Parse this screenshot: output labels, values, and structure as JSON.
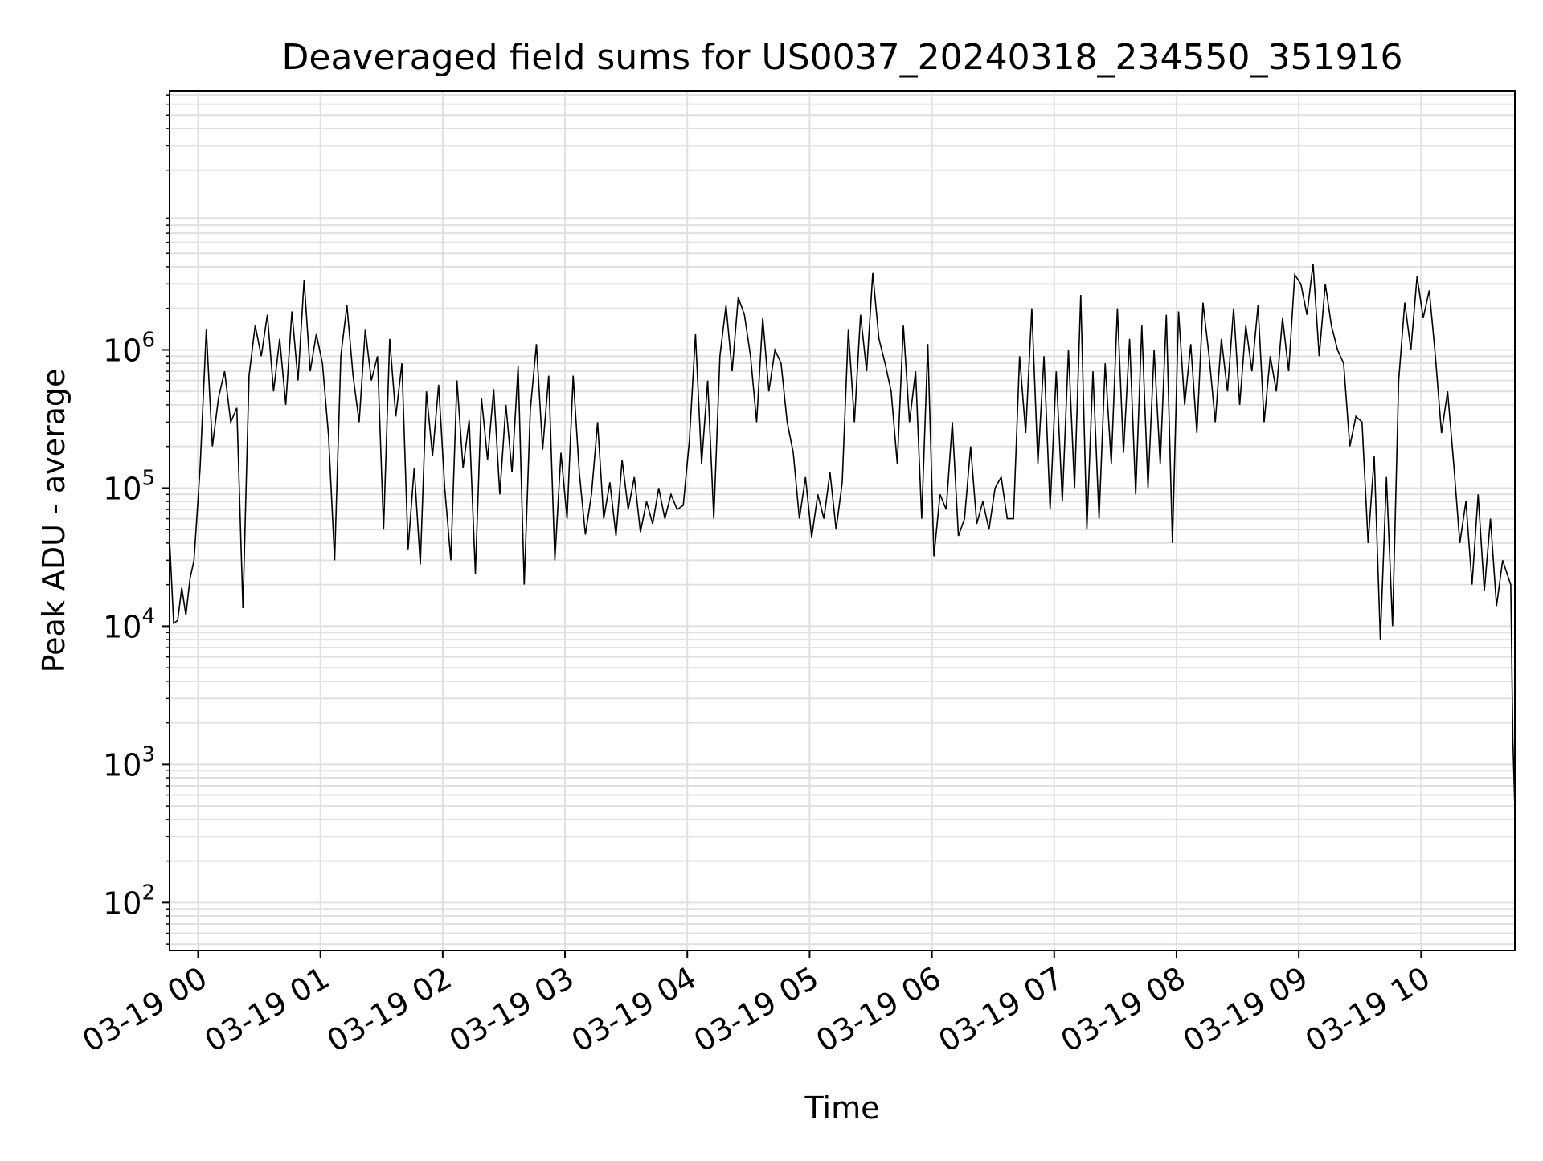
{
  "chart_data": {
    "type": "line",
    "title": "Deaveraged field sums for US0037_20240318_234550_351916",
    "xlabel": "Time",
    "ylabel": "Peak ADU - average",
    "yscale": "log",
    "ylim": [
      45,
      75000000
    ],
    "xlim": [
      "2024-03-18 23:46",
      "2024-03-19 10:46"
    ],
    "grid": true,
    "line_color": "#000000",
    "grid_color": "#e0e0e0",
    "x_ticks": [
      {
        "value": "2024-03-19 00:00",
        "label": "03-19 00"
      },
      {
        "value": "2024-03-19 01:00",
        "label": "03-19 01"
      },
      {
        "value": "2024-03-19 02:00",
        "label": "03-19 02"
      },
      {
        "value": "2024-03-19 03:00",
        "label": "03-19 03"
      },
      {
        "value": "2024-03-19 04:00",
        "label": "03-19 04"
      },
      {
        "value": "2024-03-19 05:00",
        "label": "03-19 05"
      },
      {
        "value": "2024-03-19 06:00",
        "label": "03-19 06"
      },
      {
        "value": "2024-03-19 07:00",
        "label": "03-19 07"
      },
      {
        "value": "2024-03-19 08:00",
        "label": "03-19 08"
      },
      {
        "value": "2024-03-19 09:00",
        "label": "03-19 09"
      },
      {
        "value": "2024-03-19 10:00",
        "label": "03-19 10"
      }
    ],
    "y_ticks": [
      {
        "value": 100,
        "base": "10",
        "exp": "2"
      },
      {
        "value": 1000,
        "base": "10",
        "exp": "3"
      },
      {
        "value": 10000,
        "base": "10",
        "exp": "4"
      },
      {
        "value": 100000,
        "base": "10",
        "exp": "5"
      },
      {
        "value": 1000000,
        "base": "10",
        "exp": "6"
      }
    ],
    "series": [
      {
        "x": [
          "2024-03-18 23:46",
          "2024-03-18 23:48",
          "2024-03-18 23:50",
          "2024-03-18 23:52",
          "2024-03-18 23:54",
          "2024-03-18 23:56",
          "2024-03-18 23:58",
          "2024-03-19 00:01",
          "2024-03-19 00:04",
          "2024-03-19 00:07",
          "2024-03-19 00:10",
          "2024-03-19 00:13",
          "2024-03-19 00:16",
          "2024-03-19 00:19",
          "2024-03-19 00:22",
          "2024-03-19 00:25",
          "2024-03-19 00:28",
          "2024-03-19 00:31",
          "2024-03-19 00:34",
          "2024-03-19 00:37",
          "2024-03-19 00:40",
          "2024-03-19 00:43",
          "2024-03-19 00:46",
          "2024-03-19 00:49",
          "2024-03-19 00:52",
          "2024-03-19 00:55",
          "2024-03-19 00:58",
          "2024-03-19 01:01",
          "2024-03-19 01:04",
          "2024-03-19 01:07",
          "2024-03-19 01:10",
          "2024-03-19 01:13",
          "2024-03-19 01:16",
          "2024-03-19 01:19",
          "2024-03-19 01:22",
          "2024-03-19 01:25",
          "2024-03-19 01:28",
          "2024-03-19 01:31",
          "2024-03-19 01:34",
          "2024-03-19 01:37",
          "2024-03-19 01:40",
          "2024-03-19 01:43",
          "2024-03-19 01:46",
          "2024-03-19 01:49",
          "2024-03-19 01:52",
          "2024-03-19 01:55",
          "2024-03-19 01:58",
          "2024-03-19 02:01",
          "2024-03-19 02:04",
          "2024-03-19 02:07",
          "2024-03-19 02:10",
          "2024-03-19 02:13",
          "2024-03-19 02:16",
          "2024-03-19 02:19",
          "2024-03-19 02:22",
          "2024-03-19 02:25",
          "2024-03-19 02:28",
          "2024-03-19 02:31",
          "2024-03-19 02:34",
          "2024-03-19 02:37",
          "2024-03-19 02:40",
          "2024-03-19 02:43",
          "2024-03-19 02:46",
          "2024-03-19 02:49",
          "2024-03-19 02:52",
          "2024-03-19 02:55",
          "2024-03-19 02:58",
          "2024-03-19 03:01",
          "2024-03-19 03:04",
          "2024-03-19 03:07",
          "2024-03-19 03:10",
          "2024-03-19 03:13",
          "2024-03-19 03:16",
          "2024-03-19 03:19",
          "2024-03-19 03:22",
          "2024-03-19 03:25",
          "2024-03-19 03:28",
          "2024-03-19 03:31",
          "2024-03-19 03:34",
          "2024-03-19 03:37",
          "2024-03-19 03:40",
          "2024-03-19 03:43",
          "2024-03-19 03:46",
          "2024-03-19 03:49",
          "2024-03-19 03:52",
          "2024-03-19 03:55",
          "2024-03-19 03:58",
          "2024-03-19 04:01",
          "2024-03-19 04:04",
          "2024-03-19 04:07",
          "2024-03-19 04:10",
          "2024-03-19 04:13",
          "2024-03-19 04:16",
          "2024-03-19 04:19",
          "2024-03-19 04:22",
          "2024-03-19 04:25",
          "2024-03-19 04:28",
          "2024-03-19 04:31",
          "2024-03-19 04:34",
          "2024-03-19 04:37",
          "2024-03-19 04:40",
          "2024-03-19 04:43",
          "2024-03-19 04:46",
          "2024-03-19 04:49",
          "2024-03-19 04:52",
          "2024-03-19 04:55",
          "2024-03-19 04:58",
          "2024-03-19 05:01",
          "2024-03-19 05:04",
          "2024-03-19 05:07",
          "2024-03-19 05:10",
          "2024-03-19 05:13",
          "2024-03-19 05:16",
          "2024-03-19 05:19",
          "2024-03-19 05:22",
          "2024-03-19 05:25",
          "2024-03-19 05:28",
          "2024-03-19 05:31",
          "2024-03-19 05:34",
          "2024-03-19 05:37",
          "2024-03-19 05:40",
          "2024-03-19 05:43",
          "2024-03-19 05:46",
          "2024-03-19 05:49",
          "2024-03-19 05:52",
          "2024-03-19 05:55",
          "2024-03-19 05:58",
          "2024-03-19 06:01",
          "2024-03-19 06:04",
          "2024-03-19 06:07",
          "2024-03-19 06:10",
          "2024-03-19 06:13",
          "2024-03-19 06:16",
          "2024-03-19 06:19",
          "2024-03-19 06:22",
          "2024-03-19 06:25",
          "2024-03-19 06:28",
          "2024-03-19 06:31",
          "2024-03-19 06:34",
          "2024-03-19 06:37",
          "2024-03-19 06:40",
          "2024-03-19 06:43",
          "2024-03-19 06:46",
          "2024-03-19 06:49",
          "2024-03-19 06:52",
          "2024-03-19 06:55",
          "2024-03-19 06:58",
          "2024-03-19 07:01",
          "2024-03-19 07:04",
          "2024-03-19 07:07",
          "2024-03-19 07:10",
          "2024-03-19 07:13",
          "2024-03-19 07:16",
          "2024-03-19 07:19",
          "2024-03-19 07:22",
          "2024-03-19 07:25",
          "2024-03-19 07:28",
          "2024-03-19 07:31",
          "2024-03-19 07:34",
          "2024-03-19 07:37",
          "2024-03-19 07:40",
          "2024-03-19 07:43",
          "2024-03-19 07:46",
          "2024-03-19 07:49",
          "2024-03-19 07:52",
          "2024-03-19 07:55",
          "2024-03-19 07:58",
          "2024-03-19 08:01",
          "2024-03-19 08:04",
          "2024-03-19 08:07",
          "2024-03-19 08:10",
          "2024-03-19 08:13",
          "2024-03-19 08:16",
          "2024-03-19 08:19",
          "2024-03-19 08:22",
          "2024-03-19 08:25",
          "2024-03-19 08:28",
          "2024-03-19 08:31",
          "2024-03-19 08:34",
          "2024-03-19 08:37",
          "2024-03-19 08:40",
          "2024-03-19 08:43",
          "2024-03-19 08:46",
          "2024-03-19 08:49",
          "2024-03-19 08:52",
          "2024-03-19 08:55",
          "2024-03-19 08:58",
          "2024-03-19 09:01",
          "2024-03-19 09:04",
          "2024-03-19 09:07",
          "2024-03-19 09:10",
          "2024-03-19 09:13",
          "2024-03-19 09:16",
          "2024-03-19 09:19",
          "2024-03-19 09:22",
          "2024-03-19 09:25",
          "2024-03-19 09:28",
          "2024-03-19 09:31",
          "2024-03-19 09:34",
          "2024-03-19 09:37",
          "2024-03-19 09:40",
          "2024-03-19 09:43",
          "2024-03-19 09:46",
          "2024-03-19 09:49",
          "2024-03-19 09:52",
          "2024-03-19 09:55",
          "2024-03-19 09:58",
          "2024-03-19 10:01",
          "2024-03-19 10:04",
          "2024-03-19 10:07",
          "2024-03-19 10:10",
          "2024-03-19 10:13",
          "2024-03-19 10:16",
          "2024-03-19 10:19",
          "2024-03-19 10:22",
          "2024-03-19 10:25",
          "2024-03-19 10:28",
          "2024-03-19 10:31",
          "2024-03-19 10:34",
          "2024-03-19 10:37",
          "2024-03-19 10:40",
          "2024-03-19 10:43",
          "2024-03-19 10:44",
          "2024-03-19 10:45",
          "2024-03-19 10:46"
        ],
        "values": [
          42000,
          10500,
          11000,
          19000,
          12000,
          22000,
          30000,
          140000,
          1400000,
          200000,
          450000,
          700000,
          300000,
          380000,
          13500,
          650000,
          1500000,
          900000,
          1800000,
          500000,
          1200000,
          400000,
          1900000,
          600000,
          3200000,
          700000,
          1300000,
          800000,
          240000,
          30000,
          900000,
          2100000,
          650000,
          300000,
          1400000,
          600000,
          900000,
          50000,
          1200000,
          330000,
          800000,
          36000,
          140000,
          28000,
          500000,
          170000,
          560000,
          100000,
          30000,
          600000,
          140000,
          310000,
          24000,
          450000,
          160000,
          520000,
          90000,
          400000,
          130000,
          760000,
          20000,
          370000,
          1100000,
          190000,
          650000,
          30000,
          180000,
          60000,
          650000,
          130000,
          46000,
          90000,
          300000,
          60000,
          110000,
          45000,
          160000,
          70000,
          120000,
          48000,
          80000,
          55000,
          100000,
          60000,
          90000,
          70000,
          75000,
          220000,
          1300000,
          150000,
          600000,
          60000,
          900000,
          2100000,
          700000,
          2400000,
          1800000,
          900000,
          300000,
          1700000,
          500000,
          1000000,
          800000,
          300000,
          180000,
          60000,
          120000,
          44000,
          90000,
          60000,
          130000,
          50000,
          110000,
          1400000,
          300000,
          1800000,
          700000,
          3600000,
          1200000,
          800000,
          500000,
          150000,
          1500000,
          300000,
          700000,
          60000,
          1100000,
          32000,
          90000,
          70000,
          300000,
          45000,
          60000,
          200000,
          55000,
          80000,
          50000,
          100000,
          120000,
          60000,
          60000,
          900000,
          250000,
          2000000,
          150000,
          900000,
          70000,
          700000,
          80000,
          1000000,
          100000,
          2500000,
          50000,
          700000,
          60000,
          800000,
          150000,
          2000000,
          180000,
          1200000,
          90000,
          1500000,
          100000,
          1000000,
          150000,
          1800000,
          40000,
          1900000,
          400000,
          1100000,
          250000,
          2200000,
          900000,
          300000,
          1200000,
          500000,
          2000000,
          400000,
          1500000,
          700000,
          2100000,
          300000,
          900000,
          500000,
          1700000,
          700000,
          3500000,
          3000000,
          1800000,
          4200000,
          900000,
          3000000,
          1500000,
          1000000,
          800000,
          200000,
          330000,
          300000,
          40000,
          170000,
          8000,
          120000,
          10000,
          600000,
          2200000,
          1000000,
          3400000,
          1700000,
          2700000,
          900000,
          250000,
          500000,
          150000,
          40000,
          80000,
          20000,
          90000,
          18000,
          60000,
          14000,
          30000,
          22000,
          20000,
          1500,
          480
        ]
      }
    ]
  }
}
